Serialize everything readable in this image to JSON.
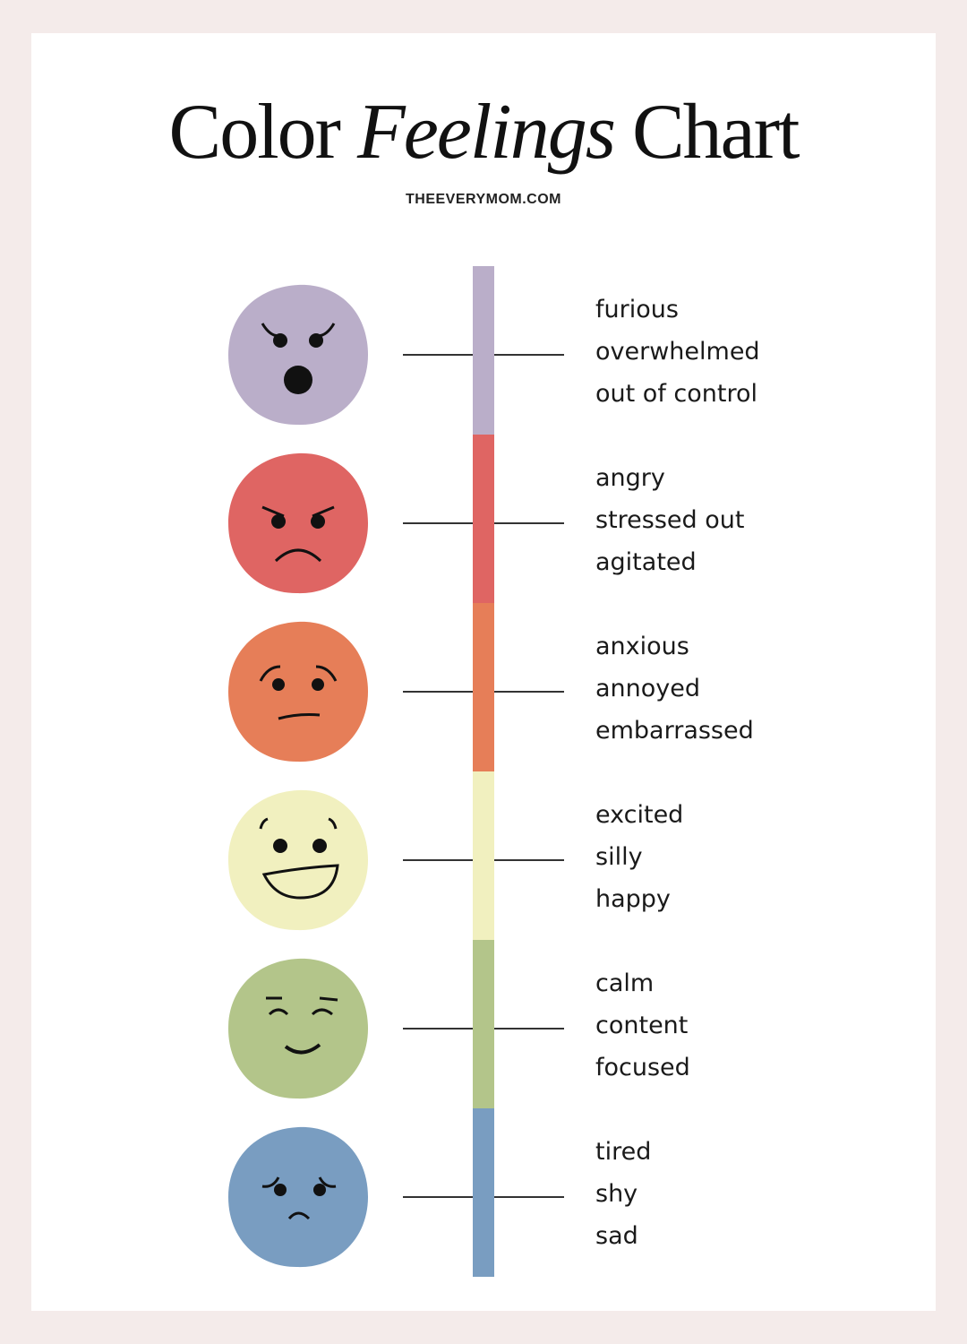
{
  "title": {
    "part1": "Color",
    "part2": "Feelings",
    "part3": "Chart"
  },
  "subtitle": "THEEVERYMOM.COM",
  "levels": [
    {
      "color": "#baaec9",
      "face": "furious-face-icon",
      "words": [
        "furious",
        "overwhelmed",
        "out of control"
      ]
    },
    {
      "color": "#df6563",
      "face": "angry-face-icon",
      "words": [
        "angry",
        "stressed out",
        "agitated"
      ]
    },
    {
      "color": "#e67e58",
      "face": "worried-face-icon",
      "words": [
        "anxious",
        "annoyed",
        "embarrassed"
      ]
    },
    {
      "color": "#f1f0bf",
      "face": "laughing-face-icon",
      "words": [
        "excited",
        "silly",
        "happy"
      ]
    },
    {
      "color": "#b3c58a",
      "face": "smiling-face-icon",
      "words": [
        "calm",
        "content",
        "focused"
      ]
    },
    {
      "color": "#799dc1",
      "face": "sad-face-icon",
      "words": [
        "tired",
        "shy",
        "sad"
      ]
    }
  ]
}
